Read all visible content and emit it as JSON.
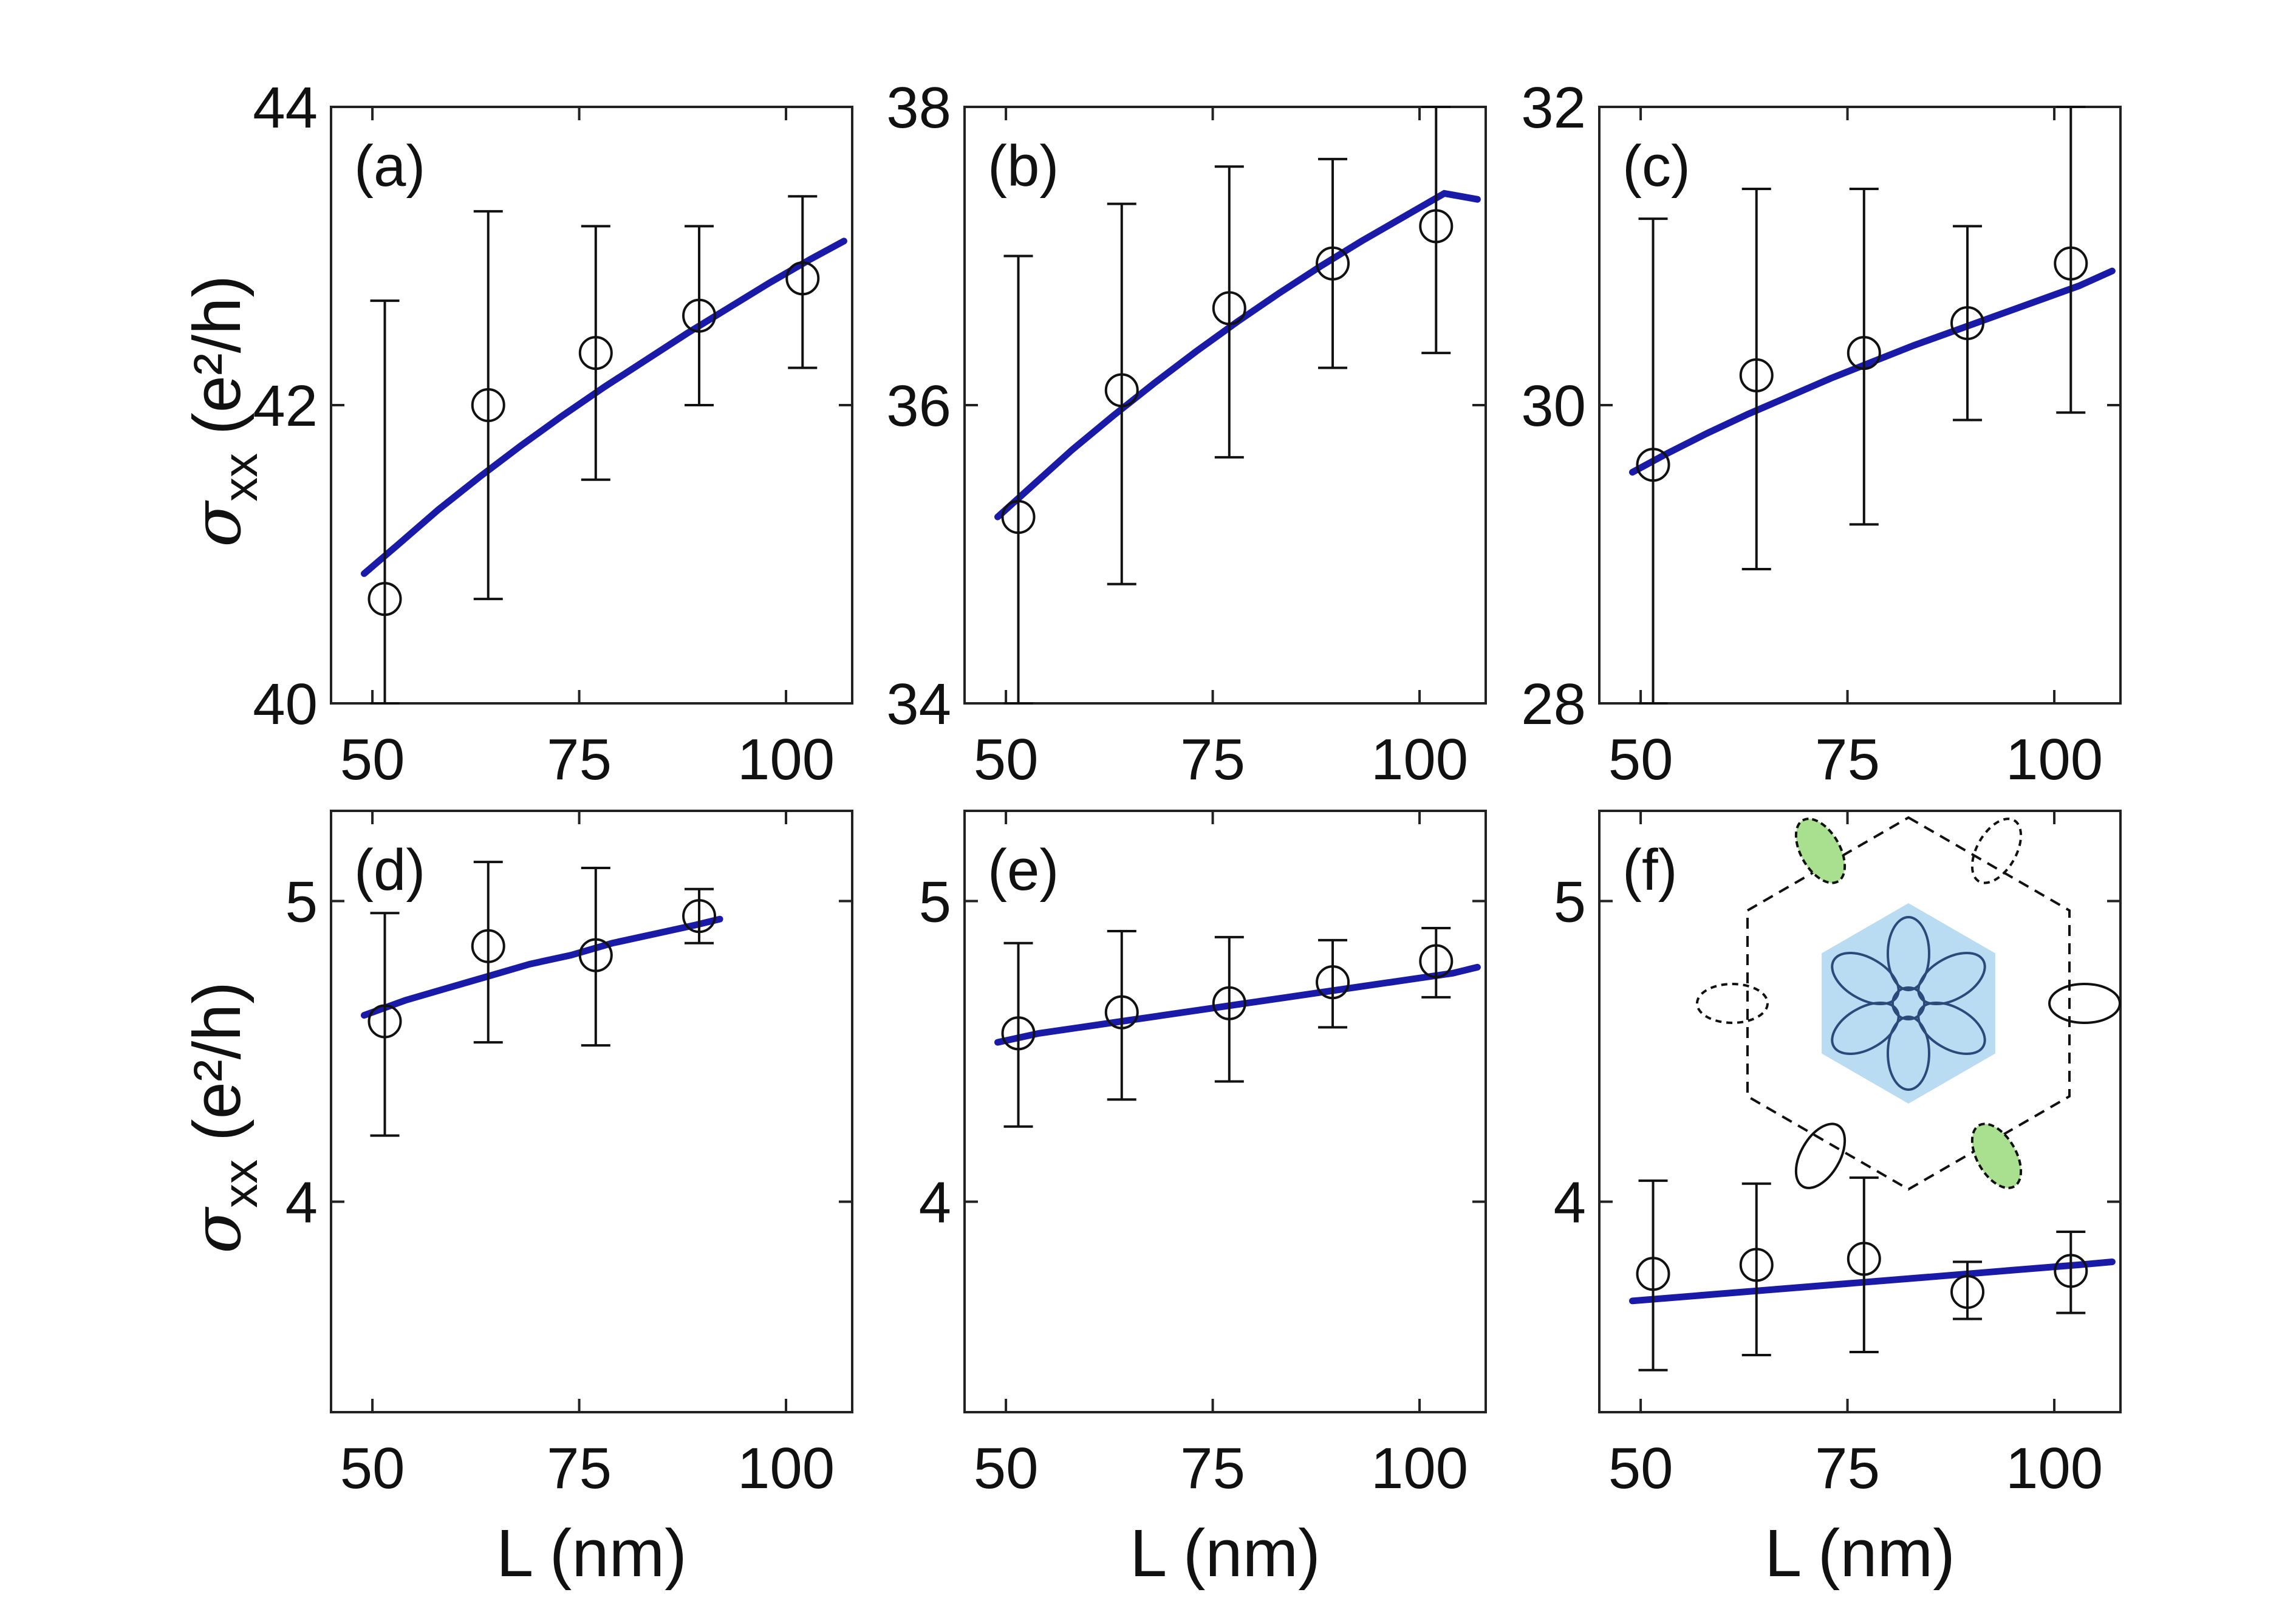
{
  "chart_data": [
    {
      "type": "scatter",
      "panel": "(a)",
      "xlabel": "",
      "ylabel_symbol": "σ",
      "ylabel_sub": "xx",
      "ylabel_unit": "(e²/h)",
      "xlim": [
        45,
        108
      ],
      "ylim": [
        40,
        44
      ],
      "xticks": [
        50,
        75,
        100
      ],
      "yticks": [
        40,
        42,
        44
      ],
      "points": [
        {
          "x": 51.5,
          "y": 40.7,
          "lo": 40.0,
          "hi": 42.7
        },
        {
          "x": 64,
          "y": 42.0,
          "lo": 40.7,
          "hi": 43.3
        },
        {
          "x": 77,
          "y": 42.35,
          "lo": 41.5,
          "hi": 43.2
        },
        {
          "x": 89.5,
          "y": 42.6,
          "lo": 42.0,
          "hi": 43.2
        },
        {
          "x": 102,
          "y": 42.85,
          "lo": 42.25,
          "hi": 43.4
        }
      ],
      "fit": {
        "x": [
          49,
          53,
          58,
          63,
          68,
          73,
          78,
          83,
          88,
          93,
          98,
          103,
          107
        ],
        "y": [
          40.87,
          41.06,
          41.3,
          41.52,
          41.73,
          41.93,
          42.12,
          42.3,
          42.48,
          42.65,
          42.82,
          42.98,
          43.1
        ]
      }
    },
    {
      "type": "scatter",
      "panel": "(b)",
      "xlabel": "",
      "xlim": [
        45,
        108
      ],
      "ylim": [
        34,
        38
      ],
      "xticks": [
        50,
        75,
        100
      ],
      "yticks": [
        34,
        36,
        38
      ],
      "points": [
        {
          "x": 51.5,
          "y": 35.25,
          "lo": 34.0,
          "hi": 37.0
        },
        {
          "x": 64,
          "y": 36.1,
          "lo": 34.8,
          "hi": 37.35
        },
        {
          "x": 77,
          "y": 36.65,
          "lo": 35.65,
          "hi": 37.6
        },
        {
          "x": 89.5,
          "y": 36.95,
          "lo": 36.25,
          "hi": 37.65
        },
        {
          "x": 102,
          "y": 37.2,
          "lo": 36.35,
          "hi": 38.0
        }
      ],
      "fit": {
        "x": [
          49,
          53,
          58,
          63,
          68,
          73,
          78,
          83,
          88,
          93,
          98,
          103,
          107
        ],
        "y": [
          35.25,
          35.45,
          35.7,
          35.93,
          36.15,
          36.36,
          36.56,
          36.75,
          36.93,
          37.1,
          37.26,
          37.42,
          37.38
        ]
      }
    },
    {
      "type": "scatter",
      "panel": "(c)",
      "xlabel": "",
      "xlim": [
        45,
        108
      ],
      "ylim": [
        28,
        32
      ],
      "xticks": [
        50,
        75,
        100
      ],
      "yticks": [
        28,
        30,
        32
      ],
      "points": [
        {
          "x": 51.5,
          "y": 29.6,
          "lo": 28.0,
          "hi": 31.25
        },
        {
          "x": 64,
          "y": 30.2,
          "lo": 28.9,
          "hi": 31.45
        },
        {
          "x": 77,
          "y": 30.35,
          "lo": 29.2,
          "hi": 31.45
        },
        {
          "x": 89.5,
          "y": 30.55,
          "lo": 29.9,
          "hi": 31.2
        },
        {
          "x": 102,
          "y": 30.95,
          "lo": 29.95,
          "hi": 32.0
        }
      ],
      "fit": {
        "x": [
          49,
          53,
          58,
          63,
          68,
          73,
          78,
          83,
          88,
          93,
          98,
          103,
          107
        ],
        "y": [
          29.55,
          29.67,
          29.81,
          29.94,
          30.06,
          30.18,
          30.29,
          30.4,
          30.5,
          30.6,
          30.7,
          30.8,
          30.9
        ]
      }
    },
    {
      "type": "scatter",
      "panel": "(d)",
      "xlabel": "L (nm)",
      "ylabel_symbol": "σ",
      "ylabel_sub": "xx",
      "ylabel_unit": "(e²/h)",
      "xlim": [
        45,
        108
      ],
      "ylim": [
        3.3,
        5.3
      ],
      "xticks": [
        50,
        75,
        100
      ],
      "yticks": [
        4,
        5
      ],
      "points": [
        {
          "x": 51.5,
          "y": 4.6,
          "lo": 4.22,
          "hi": 4.96
        },
        {
          "x": 64,
          "y": 4.85,
          "lo": 4.53,
          "hi": 5.13
        },
        {
          "x": 77,
          "y": 4.82,
          "lo": 4.52,
          "hi": 5.11
        },
        {
          "x": 89.5,
          "y": 4.95,
          "lo": 4.86,
          "hi": 5.04
        }
      ],
      "fit": {
        "x": [
          49,
          54,
          59,
          64,
          69,
          74,
          79,
          84,
          89,
          92
        ],
        "y": [
          4.62,
          4.67,
          4.71,
          4.75,
          4.79,
          4.82,
          4.86,
          4.89,
          4.92,
          4.94
        ]
      }
    },
    {
      "type": "scatter",
      "panel": "(e)",
      "xlabel": "L (nm)",
      "xlim": [
        45,
        108
      ],
      "ylim": [
        3.3,
        5.3
      ],
      "xticks": [
        50,
        75,
        100
      ],
      "yticks": [
        4,
        5
      ],
      "points": [
        {
          "x": 51.5,
          "y": 4.56,
          "lo": 4.25,
          "hi": 4.86
        },
        {
          "x": 64,
          "y": 4.63,
          "lo": 4.34,
          "hi": 4.9
        },
        {
          "x": 77,
          "y": 4.66,
          "lo": 4.4,
          "hi": 4.88
        },
        {
          "x": 89.5,
          "y": 4.73,
          "lo": 4.58,
          "hi": 4.87
        },
        {
          "x": 102,
          "y": 4.8,
          "lo": 4.68,
          "hi": 4.91
        }
      ],
      "fit": {
        "x": [
          49,
          54,
          59,
          64,
          69,
          74,
          79,
          84,
          89,
          94,
          99,
          104,
          107
        ],
        "y": [
          4.53,
          4.56,
          4.58,
          4.6,
          4.62,
          4.64,
          4.66,
          4.68,
          4.7,
          4.72,
          4.74,
          4.76,
          4.78
        ]
      }
    },
    {
      "type": "scatter",
      "panel": "(f)",
      "xlabel": "L (nm)",
      "xlim": [
        45,
        108
      ],
      "ylim": [
        3.3,
        5.3
      ],
      "xticks": [
        50,
        75,
        100
      ],
      "yticks": [
        4,
        5
      ],
      "points": [
        {
          "x": 51.5,
          "y": 3.76,
          "lo": 3.44,
          "hi": 4.07
        },
        {
          "x": 64,
          "y": 3.79,
          "lo": 3.49,
          "hi": 4.06
        },
        {
          "x": 77,
          "y": 3.81,
          "lo": 3.5,
          "hi": 4.08
        },
        {
          "x": 89.5,
          "y": 3.7,
          "lo": 3.61,
          "hi": 3.8
        },
        {
          "x": 102,
          "y": 3.77,
          "lo": 3.63,
          "hi": 3.9
        }
      ],
      "fit": {
        "x": [
          49,
          58,
          67,
          76,
          85,
          94,
          103,
          107
        ],
        "y": [
          3.67,
          3.69,
          3.71,
          3.73,
          3.75,
          3.77,
          3.79,
          3.8
        ]
      }
    }
  ],
  "colors": {
    "fit": "#1a1aa8",
    "marker": "#111111",
    "inset_hex": "#b9dcf2",
    "inset_pocket": "#a8e090"
  }
}
